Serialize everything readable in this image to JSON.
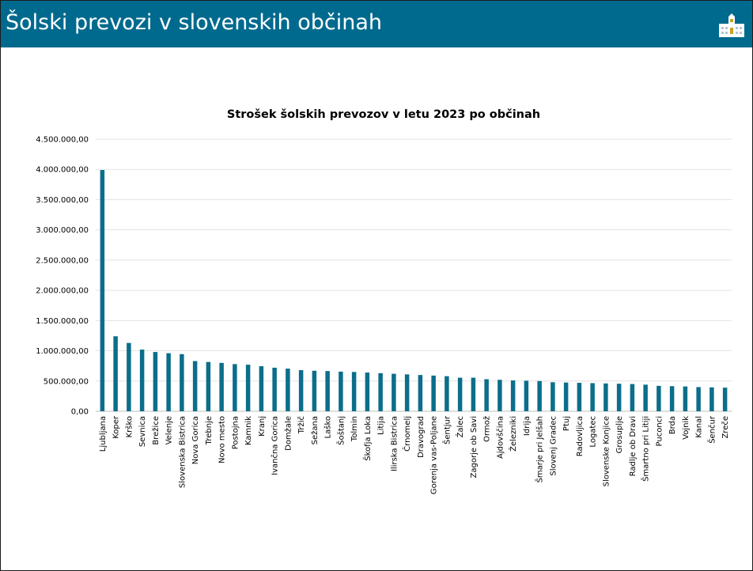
{
  "header": {
    "title": "Šolski prevozi v slovenskih občinah",
    "background": "#006a8e",
    "logo_icon": "government-building-icon"
  },
  "chart_data": {
    "type": "bar",
    "title": "Strošek šolskih prevozov v letu 2023 po občinah",
    "xlabel": "",
    "ylabel": "",
    "ylim": [
      0,
      4500000
    ],
    "yticks": [
      0,
      500000,
      1000000,
      1500000,
      2000000,
      2500000,
      3000000,
      3500000,
      4000000,
      4500000
    ],
    "ytick_labels": [
      "0,00",
      "500.000,00",
      "1.000.000,00",
      "1.500.000,00",
      "2.000.000,00",
      "2.500.000,00",
      "3.000.000,00",
      "3.500.000,00",
      "4.000.000,00",
      "4.500.000,00"
    ],
    "grid": true,
    "legend": "none",
    "bar_color": "#0b6e8a",
    "categories": [
      "Ljubljana",
      "Koper",
      "Krško",
      "Sevnica",
      "Brežice",
      "Velenje",
      "Slovenska Bistrica",
      "Nova Gorica",
      "Trebnje",
      "Novo mesto",
      "Postojna",
      "Kamnik",
      "Kranj",
      "Ivančna Gorica",
      "Domžale",
      "Tržič",
      "Sežana",
      "Laško",
      "Šoštanj",
      "Tolmin",
      "Škofja Loka",
      "Litija",
      "Ilirska Bistrica",
      "Črnomelj",
      "Dravograd",
      "Gorenja vas-Poljane",
      "Šentjur",
      "Žalec",
      "Zagorje ob Savi",
      "Ormož",
      "Ajdovščina",
      "Železniki",
      "Idrija",
      "Šmarje pri Jelšah",
      "Slovenj Gradec",
      "Ptuj",
      "Radovljica",
      "Logatec",
      "Slovenske Konjice",
      "Grosuplje",
      "Radlje ob Dravi",
      "Šmartno pri Litiji",
      "Puconci",
      "Brda",
      "Vojnik",
      "Kanal",
      "Šenčur",
      "Zreče"
    ],
    "values": [
      3990000,
      1240000,
      1130000,
      1020000,
      980000,
      960000,
      945000,
      830000,
      815000,
      800000,
      780000,
      770000,
      745000,
      720000,
      705000,
      680000,
      670000,
      665000,
      655000,
      650000,
      640000,
      630000,
      620000,
      610000,
      600000,
      590000,
      580000,
      555000,
      555000,
      530000,
      520000,
      510000,
      505000,
      500000,
      480000,
      475000,
      470000,
      465000,
      460000,
      455000,
      450000,
      440000,
      420000,
      415000,
      410000,
      400000,
      395000,
      390000
    ]
  }
}
